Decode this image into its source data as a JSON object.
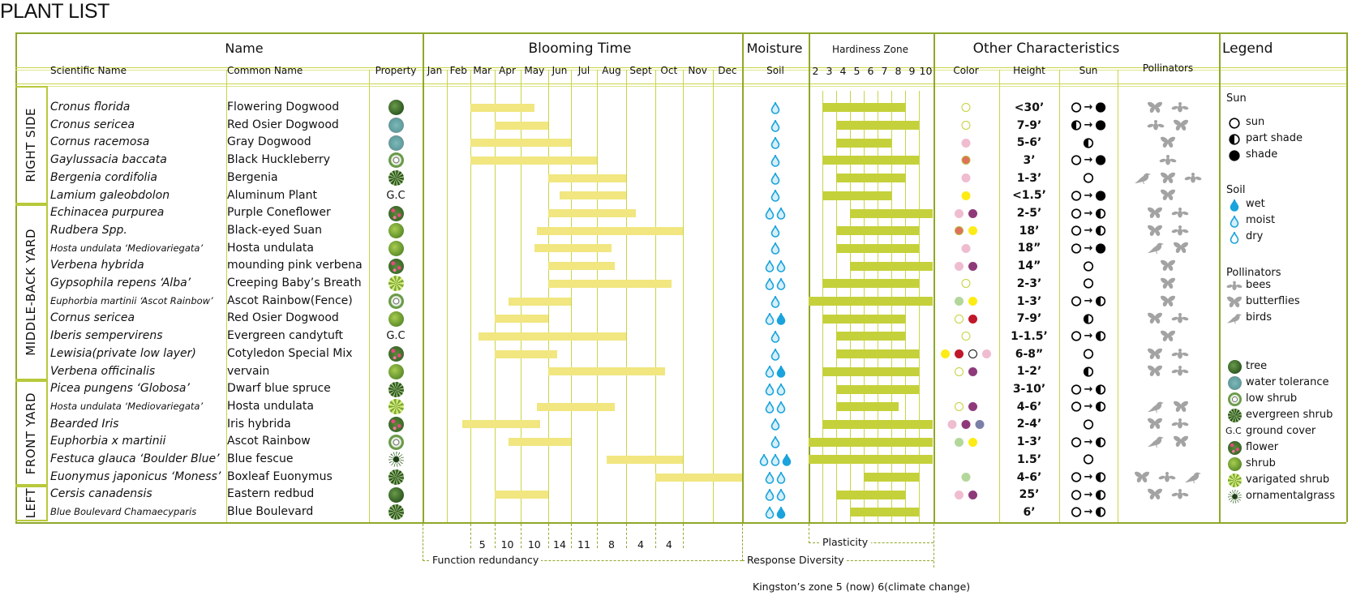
{
  "title": "PLANT LIST",
  "headers": {
    "name": "Name",
    "blooming_time": "Blooming Time",
    "moisture": "Moisture",
    "hardiness_zone": "Hardiness Zone",
    "other": "Other Characteristics",
    "legend": "Legend"
  },
  "subheaders": {
    "scientific": "Scientific Name",
    "common": "Common Name",
    "property": "Property",
    "months": [
      "Jan",
      "Feb",
      "Mar",
      "Apr",
      "May",
      "Jun",
      "Jul",
      "Aug",
      "Sept",
      "Oct",
      "Nov",
      "Dec"
    ],
    "soil": "Soil",
    "zones": [
      "2",
      "3",
      "4",
      "5",
      "6",
      "7",
      "8",
      "9",
      "10"
    ],
    "color": "Color",
    "height": "Height",
    "sun": "Sun",
    "pollinators": "Pollinators"
  },
  "sections": [
    {
      "label": "RIGHT SIDE",
      "rows": [
        1,
        6
      ]
    },
    {
      "label": "MIDDLE-BACK YARD",
      "rows": [
        7,
        16
      ]
    },
    {
      "label": "FRONT YARD",
      "rows": [
        17,
        22
      ]
    },
    {
      "label": "LEFT",
      "rows": [
        23,
        24
      ]
    }
  ],
  "colors": {
    "border": "#8fa82a",
    "grid": "#c9d44a",
    "bloom_bar": "#f1e67f",
    "zone_bar": "#c5d13a",
    "water": "#1aa3dc",
    "pollinator": "#a3a3a3",
    "swatches": {
      "outline": "#c5d13a",
      "pink": "#efbcd0",
      "coral": "#e0705c",
      "yellow": "#fdeb15",
      "purple": "#8e3a7a",
      "lightgreen": "#b3d79a",
      "red": "#c0182a",
      "slate": "#7b80a8",
      "white-black": "#111111"
    }
  },
  "plants": [
    {
      "scientific": "Cronus florida",
      "common": "Flowering Dogwood",
      "property": "tree",
      "bloom": [
        3,
        5.5
      ],
      "soil": [
        "moist"
      ],
      "zones": [
        3,
        8
      ],
      "colors": [
        "outline"
      ],
      "height": "<30’",
      "sun": [
        "sun",
        "shade"
      ],
      "pollinators": [
        "butterfly",
        "bee"
      ]
    },
    {
      "scientific": "Cronus sericea",
      "common": "Red Osier Dogwood",
      "property": "water-tolerance",
      "bloom": [
        4,
        6
      ],
      "soil": [
        "moist"
      ],
      "zones": [
        4,
        9
      ],
      "colors": [
        "outline"
      ],
      "height": "7-9’",
      "sun": [
        "part",
        "shade"
      ],
      "pollinators": [
        "bee",
        "butterfly"
      ]
    },
    {
      "scientific": "Cornus racemosa",
      "common": "Gray Dogwood",
      "property": "water-tolerance",
      "bloom": [
        3,
        7
      ],
      "soil": [
        "moist"
      ],
      "zones": [
        4,
        7
      ],
      "colors": [
        "pink"
      ],
      "height": "5-6’",
      "sun": [
        "part"
      ],
      "pollinators": [
        "butterfly"
      ]
    },
    {
      "scientific": "Gaylussacia baccata",
      "common": "Black Huckleberry",
      "property": "low-shrub",
      "bloom": [
        3,
        8
      ],
      "soil": [
        "moist"
      ],
      "zones": [
        3,
        9
      ],
      "colors": [
        "coral"
      ],
      "height": "3’",
      "sun": [
        "sun",
        "shade"
      ],
      "pollinators": [
        "bee"
      ]
    },
    {
      "scientific": "Bergenia cordifolia",
      "common": " Bergenia",
      "property": "evergreen-shrub",
      "bloom": [
        6,
        9
      ],
      "soil": [
        "moist"
      ],
      "zones": [
        4,
        8
      ],
      "colors": [
        "pink"
      ],
      "height": "1-3’",
      "sun": [
        "sun"
      ],
      "pollinators": [
        "bird",
        "butterfly",
        "bee"
      ]
    },
    {
      "scientific": "Lamium galeobdolon",
      "common": "Aluminum Plant",
      "property": "ground-cover",
      "property_label": "G.C",
      "bloom": [
        6.5,
        9
      ],
      "soil": [
        "moist"
      ],
      "zones": [
        3,
        7
      ],
      "colors": [
        "yellow"
      ],
      "height": "<1.5’",
      "sun": [
        "sun",
        "shade"
      ],
      "pollinators": [
        "butterfly"
      ]
    },
    {
      "scientific": "Echinacea purpurea",
      "common": "Purple Coneflower",
      "property": "flower",
      "bloom": [
        6,
        9.33
      ],
      "soil": [
        "moist",
        "moist"
      ],
      "zones": [
        5,
        10
      ],
      "colors": [
        "pink",
        "purple"
      ],
      "height": "2-5’",
      "sun": [
        "sun",
        "part"
      ],
      "pollinators": [
        "butterfly",
        "bee"
      ]
    },
    {
      "scientific": "Rudbera Spp.",
      "common": "Black-eyed Suan",
      "property": "shrub",
      "bloom": [
        5.6,
        11
      ],
      "soil": [
        "moist"
      ],
      "zones": [
        4,
        9
      ],
      "colors": [
        "coral",
        "yellow"
      ],
      "height": "18’",
      "sun": [
        "sun",
        "part"
      ],
      "pollinators": [
        "butterfly",
        "bee"
      ]
    },
    {
      "scientific": "Hosta undulata ‘Mediovariegata’",
      "common": "Hosta undulata",
      "property": "shrub",
      "bloom": [
        5.5,
        8.5
      ],
      "soil": [
        "moist"
      ],
      "zones": [
        4,
        9
      ],
      "colors": [
        "pink"
      ],
      "height": "18”",
      "sun": [
        "sun",
        "shade"
      ],
      "pollinators": [
        "bird",
        "butterfly"
      ]
    },
    {
      "scientific": "Verbena hybrida",
      "common": "mounding pink verbena",
      "property": "flower",
      "bloom": [
        6,
        8.6
      ],
      "soil": [
        "moist",
        "moist"
      ],
      "zones": [
        5,
        10
      ],
      "colors": [
        "pink",
        "purple"
      ],
      "height": "14”",
      "sun": [
        "sun"
      ],
      "pollinators": [
        "butterfly"
      ]
    },
    {
      "scientific": "Gypsophila repens ‘Alba’",
      "common": "Creeping Baby’s Breath",
      "property": "varigated-shrub",
      "bloom": [
        6,
        10.6
      ],
      "soil": [
        "moist",
        "moist"
      ],
      "zones": [
        3,
        9
      ],
      "colors": [
        "outline"
      ],
      "height": "2-3’",
      "sun": [
        "sun"
      ],
      "pollinators": [
        "butterfly"
      ]
    },
    {
      "scientific": "Euphorbia martinii ‘Ascot Rainbow’",
      "common": "Ascot Rainbow(Fence)",
      "property": "low-shrub",
      "bloom": [
        4.55,
        7
      ],
      "soil": [
        "moist"
      ],
      "zones": [
        2,
        10
      ],
      "colors": [
        "lightgreen",
        "yellow"
      ],
      "height": "1-3’",
      "sun": [
        "sun",
        "part"
      ],
      "pollinators": [
        "butterfly"
      ]
    },
    {
      "scientific": "Cornus sericea",
      "common": "Red Osier Dogwood",
      "property": "shrub",
      "bloom": [
        4,
        6
      ],
      "soil": [
        "moist",
        "wet"
      ],
      "zones": [
        3,
        8
      ],
      "colors": [
        "outline",
        "red"
      ],
      "height": "7-9’",
      "sun": [
        "part"
      ],
      "pollinators": [
        "butterfly",
        "bee"
      ]
    },
    {
      "scientific": "Iberis sempervirens",
      "common": "Evergreen candytuft",
      "property": "ground-cover",
      "property_label": "G.C",
      "bloom": [
        3.33,
        9
      ],
      "soil": [
        "moist"
      ],
      "zones": [
        4,
        8
      ],
      "colors": [
        "outline"
      ],
      "height": "1-1.5’",
      "sun": [
        "sun",
        "part"
      ],
      "pollinators": [
        "butterfly"
      ]
    },
    {
      "scientific": "Lewisia(private low layer)",
      "common": "Cotyledon Special Mix",
      "property": "flower",
      "bloom": [
        4,
        6.4
      ],
      "soil": [
        "moist"
      ],
      "zones": [
        4,
        9
      ],
      "colors": [
        "yellow",
        "red",
        "white-black",
        "pink"
      ],
      "height": "6-8”",
      "sun": [
        "sun"
      ],
      "pollinators": [
        "butterfly",
        "bee"
      ]
    },
    {
      "scientific": "Verbena officinalis",
      "common": "vervain",
      "property": "shrub",
      "bloom": [
        6,
        10.35
      ],
      "soil": [
        "moist",
        "wet"
      ],
      "zones": [
        3,
        9
      ],
      "colors": [
        "outline",
        "purple"
      ],
      "height": "1-2’",
      "sun": [
        "part"
      ],
      "pollinators": [
        "butterfly",
        "bee"
      ]
    },
    {
      "scientific": "Picea pungens ‘Globosa’",
      "common": "Dwarf blue spruce",
      "property": "evergreen-shrub",
      "bloom": null,
      "soil": [
        "moist",
        "moist"
      ],
      "zones": [
        4,
        9
      ],
      "colors": [],
      "height": "3-10’",
      "sun": [
        "sun",
        "part"
      ],
      "pollinators": []
    },
    {
      "scientific": "Hosta undulata ‘Mediovariegata’",
      "common": "Hosta undulata",
      "property": "varigated-shrub",
      "bloom": [
        5.6,
        8.6
      ],
      "soil": [
        "moist",
        "moist"
      ],
      "zones": [
        4,
        7.5
      ],
      "colors": [
        "outline",
        "purple"
      ],
      "height": "4-6’",
      "sun": [
        "sun",
        "part"
      ],
      "pollinators": [
        "bird",
        "butterfly"
      ]
    },
    {
      "scientific": "Bearded Iris",
      "common": " Iris hybrida",
      "property": "flower",
      "bloom": [
        2.67,
        5.7
      ],
      "soil": [
        "moist"
      ],
      "zones": [
        3,
        10
      ],
      "colors": [
        "pink",
        "purple",
        "slate"
      ],
      "height": "2-4’",
      "sun": [
        "sun"
      ],
      "pollinators": [
        "butterfly",
        "bee"
      ]
    },
    {
      "scientific": "Euphorbia x martinii",
      "common": "Ascot Rainbow",
      "property": "low-shrub",
      "bloom": [
        4.55,
        7
      ],
      "soil": [
        "moist"
      ],
      "zones": [
        2,
        10
      ],
      "colors": [
        "lightgreen",
        "yellow"
      ],
      "height": "1-3’",
      "sun": [
        "sun",
        "part"
      ],
      "pollinators": [
        "bird",
        "butterfly"
      ]
    },
    {
      "scientific": "Festuca glauca ‘Boulder Blue’",
      "common": "Blue fescue",
      "property": "ornamental-grass",
      "bloom": [
        8.33,
        11
      ],
      "soil": [
        "moist",
        "moist",
        "wet"
      ],
      "zones": [
        2,
        10
      ],
      "colors": [],
      "height": "1.5’",
      "sun": [
        "sun"
      ],
      "pollinators": []
    },
    {
      "scientific": "Euonymus japonicus ‘Moness’",
      "common": "Boxleaf Euonymus",
      "property": "evergreen-shrub",
      "bloom": [
        10,
        13
      ],
      "soil": [
        "moist",
        "moist"
      ],
      "zones": [
        6,
        9
      ],
      "colors": [
        "lightgreen"
      ],
      "height": "4-6’",
      "sun": [
        "sun",
        "part"
      ],
      "pollinators": [
        "butterfly",
        "bee",
        "bird"
      ]
    },
    {
      "scientific": "Cersis canadensis",
      "common": "Eastern redbud",
      "property": "tree",
      "bloom": [
        4,
        6
      ],
      "soil": [
        "moist",
        "moist"
      ],
      "zones": [
        4,
        8
      ],
      "colors": [
        "pink",
        "purple"
      ],
      "height": "25’",
      "sun": [
        "sun",
        "part"
      ],
      "pollinators": [
        "butterfly",
        "bee"
      ]
    },
    {
      "scientific": "Blue Boulevard Chamaecyparis",
      "common": "Blue Boulevard",
      "property": "evergreen-shrub",
      "bloom": null,
      "soil": [
        "moist",
        "wet"
      ],
      "zones": [
        5,
        9
      ],
      "colors": [],
      "height": "6’",
      "sun": [
        "sun",
        "part"
      ],
      "pollinators": []
    }
  ],
  "legend": {
    "sun_title": "Sun",
    "sun_items": [
      {
        "icon": "sun",
        "label": "sun"
      },
      {
        "icon": "part",
        "label": "part shade"
      },
      {
        "icon": "shade",
        "label": "shade"
      }
    ],
    "soil_title": "Soil",
    "soil_items": [
      {
        "icon": "wet",
        "label": "wet"
      },
      {
        "icon": "moist",
        "label": "moist"
      },
      {
        "icon": "dry",
        "label": "dry"
      }
    ],
    "pollinators_title": "Pollinators",
    "pollinator_items": [
      {
        "icon": "bee",
        "label": "bees"
      },
      {
        "icon": "butterfly",
        "label": "butterflies"
      },
      {
        "icon": "bird",
        "label": "birds"
      }
    ],
    "property_items": [
      {
        "icon": "tree",
        "label": "tree"
      },
      {
        "icon": "water-tolerance",
        "label": "water tolerance"
      },
      {
        "icon": "low-shrub",
        "label": "low shrub"
      },
      {
        "icon": "evergreen-shrub",
        "label": "evergreen shrub"
      },
      {
        "icon": "ground-cover",
        "icon_text": "G.C",
        "label": "ground cover"
      },
      {
        "icon": "flower",
        "label": "flower"
      },
      {
        "icon": "shrub",
        "label": "shrub"
      },
      {
        "icon": "varigated-shrub",
        "label": "varigated shrub"
      },
      {
        "icon": "ornamental-grass",
        "label": "ornamentalgrass"
      }
    ]
  },
  "annotations": {
    "monthly_counts": [
      {
        "month": "Mar",
        "count": "5"
      },
      {
        "month": "Apr",
        "count": "10"
      },
      {
        "month": "May",
        "count": "10"
      },
      {
        "month": "Jun",
        "count": "14"
      },
      {
        "month": "Jul",
        "count": "11"
      },
      {
        "month": "Aug",
        "count": "8"
      },
      {
        "month": "Sept",
        "count": "4"
      },
      {
        "month": "Oct",
        "count": "4"
      }
    ],
    "function_redundancy": "Function redundancy",
    "response_diversity": "Response Diversity",
    "plasticity": "Plasticity",
    "kingston_zone": "Kingston’s zone 5 (now) 6(climate change)"
  }
}
